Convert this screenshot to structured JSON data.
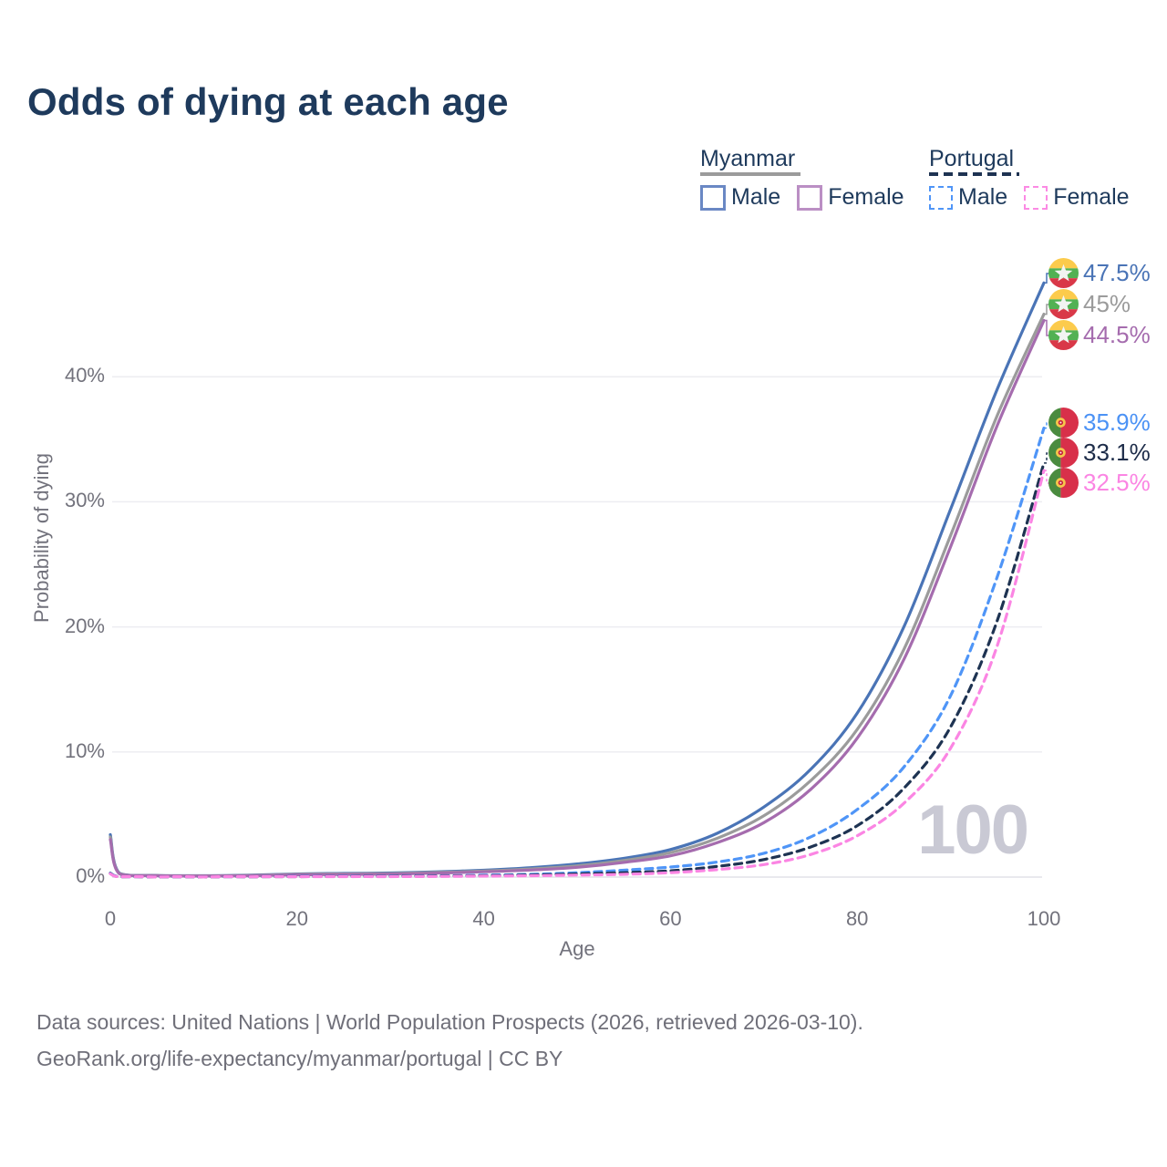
{
  "title": "Odds of dying at each age",
  "legend": {
    "groups": [
      {
        "country": "Myanmar",
        "line_style": "solid",
        "combined_line_color": "#9b9b9b",
        "items": [
          {
            "label": "Male",
            "color": "#6a88c4"
          },
          {
            "label": "Female",
            "color": "#bb8fc4"
          }
        ]
      },
      {
        "country": "Portugal",
        "line_style": "dashed",
        "combined_line_color": "#1e3352",
        "items": [
          {
            "label": "Male",
            "color": "#4f95f7"
          },
          {
            "label": "Female",
            "color": "#fb8ae4"
          }
        ]
      }
    ]
  },
  "chart_data": {
    "type": "line",
    "title": "Odds of dying at each age",
    "xlabel": "Age",
    "ylabel": "Probability of dying",
    "xlim": [
      0,
      100
    ],
    "ylim_percent": [
      0,
      48
    ],
    "x_ticks": [
      0,
      20,
      40,
      60,
      80,
      100
    ],
    "y_ticks_percent": [
      0,
      10,
      20,
      30,
      40
    ],
    "grid": "horizontal",
    "legend_position": "top-right",
    "units": "percent probability of dying at each age",
    "ages": [
      0,
      1,
      5,
      10,
      15,
      20,
      25,
      30,
      35,
      40,
      45,
      50,
      55,
      60,
      65,
      70,
      75,
      80,
      85,
      90,
      95,
      100
    ],
    "series": [
      {
        "name": "Myanmar Male",
        "country": "Myanmar",
        "sex": "male",
        "color": "#4a74b6",
        "label_color": "#4a74b6",
        "dashed": false,
        "flag": "myanmar",
        "end_label": "47.5%",
        "values": [
          3.4,
          0.3,
          0.13,
          0.11,
          0.15,
          0.25,
          0.29,
          0.33,
          0.42,
          0.55,
          0.75,
          1.05,
          1.5,
          2.2,
          3.5,
          5.6,
          8.6,
          13.1,
          20,
          29.4,
          39,
          47.5
        ]
      },
      {
        "name": "Myanmar Both sexes",
        "country": "Myanmar",
        "sex": "both",
        "color": "#9b9b9b",
        "label_color": "#9b9b9b",
        "dashed": false,
        "flag": "myanmar",
        "end_label": "45%",
        "values": [
          3.2,
          0.27,
          0.12,
          0.1,
          0.13,
          0.22,
          0.25,
          0.28,
          0.37,
          0.48,
          0.65,
          0.9,
          1.33,
          1.95,
          3.1,
          4.9,
          7.7,
          11.8,
          18.2,
          27.3,
          36.9,
          45
        ]
      },
      {
        "name": "Myanmar Female",
        "country": "Myanmar",
        "sex": "female",
        "color": "#a56cae",
        "label_color": "#a56cae",
        "dashed": false,
        "flag": "myanmar",
        "end_label": "44.5%",
        "values": [
          3.0,
          0.25,
          0.11,
          0.09,
          0.11,
          0.18,
          0.21,
          0.24,
          0.32,
          0.42,
          0.56,
          0.78,
          1.17,
          1.7,
          2.75,
          4.35,
          7.0,
          11.1,
          17.4,
          26.4,
          36.1,
          44.5
        ]
      },
      {
        "name": "Portugal Male",
        "country": "Portugal",
        "sex": "male",
        "color": "#4f95f7",
        "label_color": "#4b92f5",
        "dashed": true,
        "flag": "portugal",
        "end_label": "35.9%",
        "values": [
          0.32,
          0.03,
          0.01,
          0.01,
          0.03,
          0.06,
          0.07,
          0.08,
          0.1,
          0.15,
          0.22,
          0.35,
          0.55,
          0.8,
          1.2,
          1.9,
          3.2,
          5.4,
          8.8,
          14.5,
          24,
          35.9
        ]
      },
      {
        "name": "Portugal Both sexes",
        "country": "Portugal",
        "sex": "both",
        "color": "#1e3352",
        "label_color": "#1d2c49",
        "dashed": true,
        "flag": "portugal",
        "end_label": "33.1%",
        "values": [
          0.29,
          0.02,
          0.01,
          0.01,
          0.02,
          0.04,
          0.05,
          0.06,
          0.08,
          0.11,
          0.16,
          0.25,
          0.35,
          0.5,
          0.85,
          1.4,
          2.4,
          4.1,
          7.1,
          12,
          20.5,
          33.1
        ]
      },
      {
        "name": "Portugal Female",
        "country": "Portugal",
        "sex": "female",
        "color": "#fb85e3",
        "label_color": "#fb85e3",
        "dashed": true,
        "flag": "portugal",
        "end_label": "32.5%",
        "values": [
          0.26,
          0.02,
          0.01,
          0.01,
          0.02,
          0.03,
          0.04,
          0.04,
          0.05,
          0.08,
          0.11,
          0.16,
          0.22,
          0.35,
          0.6,
          1.0,
          1.8,
          3.3,
          5.9,
          10.3,
          18.5,
          32.5
        ]
      }
    ]
  },
  "watermark": "100",
  "footer": {
    "line1": "Data sources: United Nations | World Population Prospects (2026, retrieved 2026-03-10).",
    "line2": "GeoRank.org/life-expectancy/myanmar/portugal | CC BY"
  },
  "colors": {
    "title_text": "#1e3a5c",
    "axis_text": "#72727c",
    "gridline": "#ededf1",
    "zero_line": "#e2e2e8",
    "watermark": "#c9c9d4",
    "footer_text": "#6f6f79"
  }
}
